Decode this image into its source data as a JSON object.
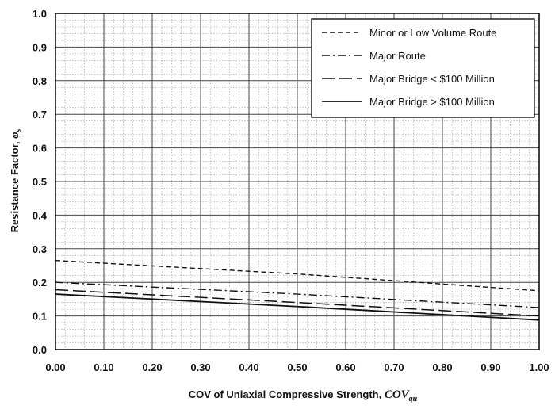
{
  "chart_data": {
    "type": "line",
    "xlabel": "COV of Uniaxial Compressive Strength,",
    "xlabel_symbol": "COV",
    "xlabel_symbol_sub": "qu",
    "ylabel": "Resistance Factor,",
    "ylabel_symbol": "φ",
    "ylabel_symbol_sub": "s",
    "xlim": [
      0.0,
      1.0
    ],
    "ylim": [
      0.0,
      1.0
    ],
    "x_ticks": [
      "0.00",
      "0.10",
      "0.20",
      "0.30",
      "0.40",
      "0.50",
      "0.60",
      "0.70",
      "0.80",
      "0.90",
      "1.00"
    ],
    "y_ticks": [
      "0.0",
      "0.1",
      "0.2",
      "0.3",
      "0.4",
      "0.5",
      "0.6",
      "0.7",
      "0.8",
      "0.9",
      "1.0"
    ],
    "grid": true,
    "legend_position": "top-right",
    "series": [
      {
        "name": "Minor or Low Volume Route",
        "style": "dashed",
        "x": [
          0.0,
          0.5,
          1.0
        ],
        "values": [
          0.265,
          0.225,
          0.175
        ]
      },
      {
        "name": "Major Route",
        "style": "dashdot",
        "x": [
          0.0,
          0.5,
          1.0
        ],
        "values": [
          0.2,
          0.165,
          0.125
        ]
      },
      {
        "name": "Major Bridge < $100 Million",
        "style": "longdash",
        "x": [
          0.0,
          0.5,
          1.0
        ],
        "values": [
          0.178,
          0.14,
          0.1
        ]
      },
      {
        "name": "Major Bridge > $100 Million",
        "style": "solid",
        "x": [
          0.0,
          0.5,
          1.0
        ],
        "values": [
          0.165,
          0.128,
          0.088
        ]
      }
    ]
  }
}
